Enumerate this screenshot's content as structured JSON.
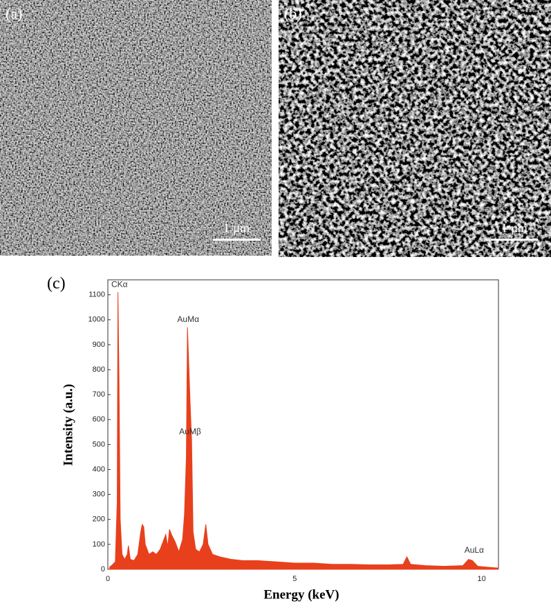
{
  "panels": [
    {
      "label": "(a)",
      "scale_bar": "1 µm"
    },
    {
      "label": "(b)",
      "scale_bar": "1 µm"
    },
    {
      "label": "(c)"
    }
  ],
  "chart_data": {
    "type": "line",
    "x_label": "Energy (keV)",
    "y_label": "Intensity (a.u.)",
    "color": "#e8401c",
    "x": [
      0.05,
      0.1,
      0.2,
      0.25,
      0.27,
      0.3,
      0.33,
      0.38,
      0.45,
      0.52,
      0.55,
      0.6,
      0.7,
      0.8,
      0.88,
      0.92,
      0.96,
      1.0,
      1.1,
      1.2,
      1.3,
      1.4,
      1.5,
      1.55,
      1.6,
      1.65,
      1.7,
      1.8,
      1.9,
      2.0,
      2.05,
      2.1,
      2.13,
      2.16,
      2.2,
      2.24,
      2.28,
      2.35,
      2.45,
      2.55,
      2.62,
      2.68,
      2.8,
      3.0,
      3.3,
      3.6,
      4.0,
      4.5,
      5.0,
      5.5,
      6.0,
      6.5,
      7.0,
      7.5,
      7.9,
      8.0,
      8.1,
      8.5,
      9.0,
      9.5,
      9.65,
      9.75,
      9.9,
      10.2,
      10.45
    ],
    "values": [
      10,
      15,
      30,
      270,
      1110,
      740,
      200,
      60,
      40,
      60,
      95,
      40,
      35,
      60,
      150,
      180,
      170,
      100,
      60,
      70,
      60,
      80,
      120,
      140,
      90,
      160,
      140,
      110,
      70,
      120,
      220,
      450,
      970,
      840,
      670,
      520,
      150,
      80,
      70,
      100,
      180,
      100,
      60,
      50,
      40,
      35,
      35,
      30,
      25,
      25,
      20,
      20,
      18,
      18,
      20,
      50,
      20,
      15,
      12,
      15,
      40,
      35,
      12,
      8,
      5
    ],
    "xlim": [
      0,
      10.45
    ],
    "ylim": [
      0,
      1160
    ],
    "xticks": [
      0,
      5,
      10
    ],
    "yticks": [
      0,
      100,
      200,
      300,
      400,
      500,
      600,
      700,
      800,
      900,
      1000,
      1100
    ],
    "annotations": [
      {
        "text": "CKα",
        "x": 0.31,
        "y": 1140
      },
      {
        "text": "AuMα",
        "x": 2.15,
        "y": 1000
      },
      {
        "text": "AuMβ",
        "x": 2.2,
        "y": 550
      },
      {
        "text": "AuLα",
        "x": 9.8,
        "y": 75
      }
    ]
  }
}
